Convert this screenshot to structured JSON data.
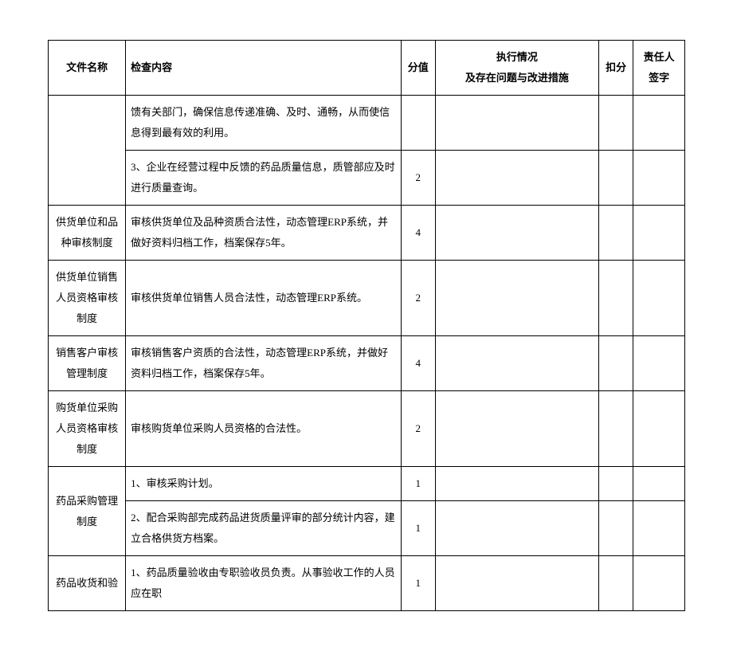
{
  "table": {
    "headers": {
      "filename": "文件名称",
      "content": "检查内容",
      "score": "分值",
      "status_line1": "执行情况",
      "status_line2": "及存在问题与改进措施",
      "deduct": "扣分",
      "sign_line1": "责任人",
      "sign_line2": "签字"
    },
    "rows": [
      {
        "filename": "",
        "content": "馈有关部门，确保信息传递准确、及时、通畅，从而使信息得到最有效的利用。",
        "score": ""
      },
      {
        "filename": null,
        "content": "3、企业在经营过程中反馈的药品质量信息，质管部应及时进行质量查询。",
        "score": "2"
      },
      {
        "filename": "供货单位和品种审核制度",
        "content": "审核供货单位及品种资质合法性，动态管理ERP系统，并做好资料归档工作，档案保存5年。",
        "score": "4"
      },
      {
        "filename": "供货单位销售人员资格审核制度",
        "content": "审核供货单位销售人员合法性，动态管理ERP系统。",
        "score": "2"
      },
      {
        "filename": "销售客户审核管理制度",
        "content": "审核销售客户资质的合法性，动态管理ERP系统，并做好资料归档工作，档案保存5年。",
        "score": "4"
      },
      {
        "filename": "购货单位采购人员资格审核制度",
        "content": "审核购货单位采购人员资格的合法性。",
        "score": "2"
      },
      {
        "filename": "药品采购管理制度",
        "content": "1、审核采购计划。",
        "score": "1"
      },
      {
        "filename": null,
        "content": "2、配合采购部完成药品进货质量评审的部分统计内容，建立合格供货方档案。",
        "score": "1"
      },
      {
        "filename": "药品收货和验",
        "content": "1、药品质量验收由专职验收员负责。从事验收工作的人员应在职",
        "score": "1"
      }
    ],
    "styling": {
      "border_color": "#000000",
      "background_color": "#ffffff",
      "font_family": "SimSun",
      "header_font_weight": "bold",
      "cell_font_size": 13,
      "line_height": 2.0,
      "col_widths": {
        "filename": 90,
        "content": 320,
        "score": 40,
        "status": 190,
        "deduct": 40,
        "sign": 60
      }
    }
  }
}
